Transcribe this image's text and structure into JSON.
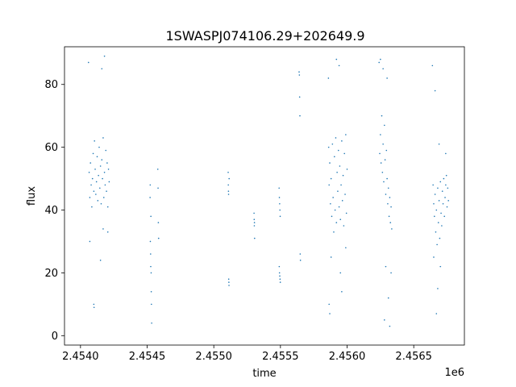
{
  "chart_data": {
    "type": "scatter",
    "title": "1SWASPJ074106.29+202649.9",
    "xlabel": "time",
    "ylabel": "flux",
    "x_offset_label": "1e6",
    "xlim": [
      2453880,
      2456880
    ],
    "ylim": [
      -3,
      92
    ],
    "grid": false,
    "legend": "none",
    "point_color": "#1f77b4",
    "x_ticks": [
      {
        "value": 2454000,
        "label": "2.4540"
      },
      {
        "value": 2454500,
        "label": "2.4545"
      },
      {
        "value": 2455000,
        "label": "2.4550"
      },
      {
        "value": 2455500,
        "label": "2.4555"
      },
      {
        "value": 2456000,
        "label": "2.4560"
      },
      {
        "value": 2456500,
        "label": "2.4565"
      }
    ],
    "y_ticks": [
      {
        "value": 0,
        "label": "0"
      },
      {
        "value": 20,
        "label": "20"
      },
      {
        "value": 40,
        "label": "40"
      },
      {
        "value": 60,
        "label": "60"
      },
      {
        "value": 80,
        "label": "80"
      }
    ],
    "series": [
      {
        "points": [
          [
            2454060,
            87
          ],
          [
            2454065,
            52
          ],
          [
            2454070,
            44
          ],
          [
            2454075,
            55
          ],
          [
            2454080,
            48
          ],
          [
            2454085,
            41
          ],
          [
            2454090,
            50
          ],
          [
            2454095,
            58
          ],
          [
            2454100,
            46
          ],
          [
            2454105,
            62
          ],
          [
            2454110,
            53
          ],
          [
            2454115,
            45
          ],
          [
            2454120,
            49
          ],
          [
            2454125,
            57
          ],
          [
            2454130,
            43
          ],
          [
            2454135,
            51
          ],
          [
            2454140,
            60
          ],
          [
            2454145,
            47
          ],
          [
            2454150,
            54
          ],
          [
            2454155,
            42
          ],
          [
            2454160,
            56
          ],
          [
            2454165,
            50
          ],
          [
            2454170,
            63
          ],
          [
            2454175,
            44
          ],
          [
            2454180,
            52
          ],
          [
            2454185,
            48
          ],
          [
            2454190,
            59
          ],
          [
            2454195,
            46
          ],
          [
            2454200,
            55
          ],
          [
            2454205,
            41
          ],
          [
            2454210,
            53
          ],
          [
            2454215,
            49
          ],
          [
            2454100,
            10
          ],
          [
            2454102,
            9
          ],
          [
            2454170,
            34
          ],
          [
            2454160,
            85
          ],
          [
            2454180,
            89
          ],
          [
            2454070,
            30
          ],
          [
            2454150,
            24
          ],
          [
            2454205,
            33
          ],
          [
            2454522,
            44
          ],
          [
            2454524,
            30
          ],
          [
            2454526,
            26
          ],
          [
            2454528,
            38
          ],
          [
            2454530,
            20
          ],
          [
            2454532,
            10
          ],
          [
            2454534,
            4
          ],
          [
            2454523,
            48
          ],
          [
            2454527,
            22
          ],
          [
            2454531,
            14
          ],
          [
            2454580,
            53
          ],
          [
            2454582,
            47
          ],
          [
            2454584,
            36
          ],
          [
            2454586,
            31
          ],
          [
            2455108,
            52
          ],
          [
            2455109,
            48
          ],
          [
            2455110,
            46
          ],
          [
            2455111,
            45
          ],
          [
            2455112,
            18
          ],
          [
            2455113,
            17
          ],
          [
            2455114,
            16
          ],
          [
            2455115,
            50
          ],
          [
            2455302,
            39
          ],
          [
            2455303,
            37
          ],
          [
            2455304,
            35
          ],
          [
            2455305,
            36
          ],
          [
            2455306,
            31
          ],
          [
            2455490,
            47
          ],
          [
            2455492,
            44
          ],
          [
            2455494,
            42
          ],
          [
            2455496,
            40
          ],
          [
            2455498,
            38
          ],
          [
            2455491,
            22
          ],
          [
            2455493,
            20
          ],
          [
            2455495,
            19
          ],
          [
            2455497,
            18
          ],
          [
            2455499,
            17
          ],
          [
            2455640,
            84
          ],
          [
            2455642,
            83
          ],
          [
            2455644,
            76
          ],
          [
            2455646,
            70
          ],
          [
            2455648,
            26
          ],
          [
            2455650,
            24
          ],
          [
            2455860,
            82
          ],
          [
            2455862,
            60
          ],
          [
            2455865,
            48
          ],
          [
            2455870,
            55
          ],
          [
            2455875,
            42
          ],
          [
            2455880,
            50
          ],
          [
            2455885,
            38
          ],
          [
            2455890,
            61
          ],
          [
            2455895,
            44
          ],
          [
            2455900,
            33
          ],
          [
            2455905,
            57
          ],
          [
            2455910,
            40
          ],
          [
            2455915,
            63
          ],
          [
            2455920,
            36
          ],
          [
            2455925,
            52
          ],
          [
            2455930,
            46
          ],
          [
            2455935,
            59
          ],
          [
            2455940,
            41
          ],
          [
            2455945,
            54
          ],
          [
            2455950,
            37
          ],
          [
            2455955,
            48
          ],
          [
            2455960,
            62
          ],
          [
            2455965,
            43
          ],
          [
            2455970,
            51
          ],
          [
            2455975,
            35
          ],
          [
            2455980,
            58
          ],
          [
            2455985,
            45
          ],
          [
            2455990,
            64
          ],
          [
            2455995,
            39
          ],
          [
            2456000,
            53
          ],
          [
            2455865,
            10
          ],
          [
            2455870,
            7
          ],
          [
            2455880,
            25
          ],
          [
            2455920,
            88
          ],
          [
            2455940,
            86
          ],
          [
            2455950,
            20
          ],
          [
            2455990,
            28
          ],
          [
            2455960,
            14
          ],
          [
            2456240,
            87
          ],
          [
            2456245,
            58
          ],
          [
            2456250,
            64
          ],
          [
            2456255,
            55
          ],
          [
            2456260,
            70
          ],
          [
            2456265,
            52
          ],
          [
            2456270,
            61
          ],
          [
            2456275,
            49
          ],
          [
            2456280,
            67
          ],
          [
            2456285,
            56
          ],
          [
            2456290,
            45
          ],
          [
            2456295,
            59
          ],
          [
            2456300,
            50
          ],
          [
            2456305,
            42
          ],
          [
            2456310,
            47
          ],
          [
            2456315,
            38
          ],
          [
            2456320,
            44
          ],
          [
            2456325,
            36
          ],
          [
            2456330,
            41
          ],
          [
            2456335,
            34
          ],
          [
            2456250,
            88
          ],
          [
            2456270,
            85
          ],
          [
            2456300,
            82
          ],
          [
            2456280,
            5
          ],
          [
            2456320,
            3
          ],
          [
            2456310,
            12
          ],
          [
            2456290,
            22
          ],
          [
            2456330,
            20
          ],
          [
            2456640,
            86
          ],
          [
            2456645,
            48
          ],
          [
            2456650,
            42
          ],
          [
            2456655,
            38
          ],
          [
            2456660,
            45
          ],
          [
            2456665,
            33
          ],
          [
            2456670,
            40
          ],
          [
            2456675,
            29
          ],
          [
            2456680,
            47
          ],
          [
            2456685,
            36
          ],
          [
            2456690,
            43
          ],
          [
            2456695,
            31
          ],
          [
            2456700,
            49
          ],
          [
            2456705,
            39
          ],
          [
            2456710,
            35
          ],
          [
            2456715,
            46
          ],
          [
            2456720,
            42
          ],
          [
            2456725,
            50
          ],
          [
            2456730,
            38
          ],
          [
            2456735,
            44
          ],
          [
            2456740,
            48
          ],
          [
            2456745,
            51
          ],
          [
            2456750,
            41
          ],
          [
            2456755,
            47
          ],
          [
            2456760,
            43
          ],
          [
            2456660,
            78
          ],
          [
            2456690,
            61
          ],
          [
            2456740,
            58
          ],
          [
            2456670,
            7
          ],
          [
            2456680,
            15
          ],
          [
            2456650,
            25
          ],
          [
            2456700,
            22
          ]
        ]
      }
    ]
  }
}
